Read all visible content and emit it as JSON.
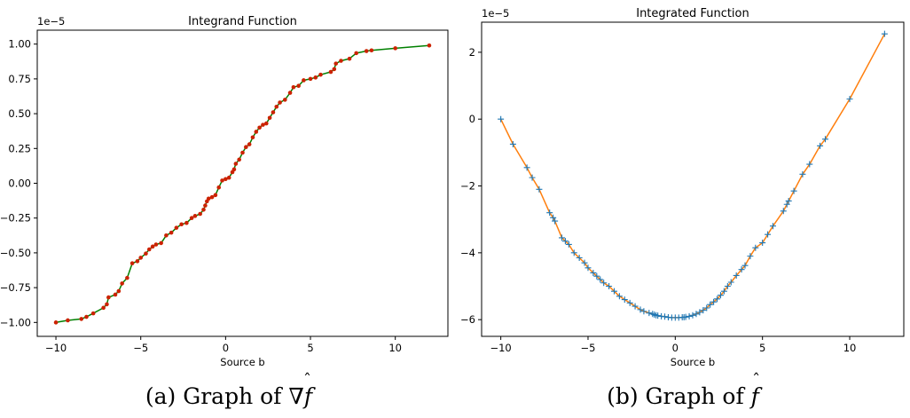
{
  "chart_data": [
    {
      "type": "line",
      "title": "Integrand Function",
      "xlabel": "Source b",
      "ylabel": "",
      "scale_label": "1e−5",
      "xlim": [
        -11.1,
        13.1
      ],
      "ylim": [
        -1.1,
        1.1
      ],
      "xticks": [
        -10,
        -5,
        0,
        5,
        10
      ],
      "xtick_labels": [
        "−10",
        "−5",
        "0",
        "5",
        "10"
      ],
      "yticks": [
        -1.0,
        -0.75,
        -0.5,
        -0.25,
        0.0,
        0.25,
        0.5,
        0.75,
        1.0
      ],
      "ytick_labels": [
        "−1.00",
        "−0.75",
        "−0.50",
        "−0.25",
        "0.00",
        "0.25",
        "0.50",
        "0.75",
        "1.00"
      ],
      "grid": false,
      "series": [
        {
          "name": "integrand",
          "line_color": "#008000",
          "marker": "dot",
          "marker_color": "#cc2200",
          "x": [
            -10,
            -9.3,
            -8.5,
            -8.2,
            -7.8,
            -7.2,
            -7.0,
            -6.9,
            -6.5,
            -6.3,
            -6.1,
            -5.8,
            -5.5,
            -5.2,
            -5.0,
            -4.7,
            -4.5,
            -4.3,
            -4.1,
            -3.8,
            -3.5,
            -3.2,
            -2.9,
            -2.6,
            -2.3,
            -2.0,
            -1.8,
            -1.5,
            -1.3,
            -1.2,
            -1.1,
            -1.0,
            -0.8,
            -0.6,
            -0.4,
            -0.2,
            0.0,
            0.2,
            0.4,
            0.5,
            0.6,
            0.8,
            1.0,
            1.2,
            1.4,
            1.6,
            1.8,
            2.0,
            2.2,
            2.4,
            2.6,
            2.8,
            3.0,
            3.2,
            3.5,
            3.8,
            4.0,
            4.3,
            4.6,
            5.0,
            5.3,
            5.6,
            6.2,
            6.4,
            6.5,
            6.8,
            7.3,
            7.7,
            8.3,
            8.6,
            10.0,
            12.0
          ],
          "y": [
            -1.0,
            -0.985,
            -0.975,
            -0.96,
            -0.935,
            -0.895,
            -0.87,
            -0.82,
            -0.8,
            -0.775,
            -0.72,
            -0.68,
            -0.575,
            -0.56,
            -0.535,
            -0.505,
            -0.475,
            -0.455,
            -0.44,
            -0.43,
            -0.375,
            -0.355,
            -0.32,
            -0.295,
            -0.285,
            -0.25,
            -0.235,
            -0.22,
            -0.19,
            -0.16,
            -0.13,
            -0.11,
            -0.1,
            -0.085,
            -0.03,
            0.02,
            0.03,
            0.04,
            0.08,
            0.1,
            0.14,
            0.17,
            0.22,
            0.26,
            0.28,
            0.33,
            0.37,
            0.4,
            0.42,
            0.43,
            0.47,
            0.51,
            0.55,
            0.58,
            0.6,
            0.65,
            0.69,
            0.7,
            0.74,
            0.75,
            0.76,
            0.78,
            0.8,
            0.82,
            0.86,
            0.88,
            0.895,
            0.935,
            0.95,
            0.955,
            0.97,
            0.99
          ]
        }
      ]
    },
    {
      "type": "line",
      "title": "Integrated Function",
      "xlabel": "Source b",
      "ylabel": "",
      "scale_label": "1e−5",
      "xlim": [
        -11.1,
        13.1
      ],
      "ylim": [
        -6.5,
        2.9
      ],
      "xticks": [
        -10,
        -5,
        0,
        5,
        10
      ],
      "xtick_labels": [
        "−10",
        "−5",
        "0",
        "5",
        "10"
      ],
      "yticks": [
        -6,
        -4,
        -2,
        0,
        2
      ],
      "ytick_labels": [
        "−6",
        "−4",
        "−2",
        "0",
        "2"
      ],
      "grid": false,
      "series": [
        {
          "name": "integrated",
          "line_color": "#ff7f0e",
          "marker": "plus",
          "marker_color": "#1f77b4",
          "x": [
            -10,
            -9.3,
            -8.5,
            -8.2,
            -7.8,
            -7.2,
            -7.0,
            -6.9,
            -6.5,
            -6.3,
            -6.1,
            -5.8,
            -5.5,
            -5.2,
            -5.0,
            -4.7,
            -4.5,
            -4.3,
            -4.1,
            -3.8,
            -3.5,
            -3.2,
            -2.9,
            -2.6,
            -2.3,
            -2.0,
            -1.8,
            -1.5,
            -1.3,
            -1.2,
            -1.1,
            -1.0,
            -0.8,
            -0.6,
            -0.4,
            -0.2,
            0.0,
            0.2,
            0.4,
            0.5,
            0.6,
            0.8,
            1.0,
            1.2,
            1.4,
            1.6,
            1.8,
            2.0,
            2.2,
            2.4,
            2.6,
            2.8,
            3.0,
            3.2,
            3.5,
            3.8,
            4.0,
            4.3,
            4.6,
            5.0,
            5.3,
            5.6,
            6.2,
            6.4,
            6.5,
            6.8,
            7.3,
            7.7,
            8.3,
            8.6,
            10.0,
            12.0
          ],
          "y": [
            0.0,
            -0.75,
            -1.45,
            -1.75,
            -2.1,
            -2.8,
            -2.95,
            -3.05,
            -3.55,
            -3.65,
            -3.75,
            -4.0,
            -4.15,
            -4.3,
            -4.45,
            -4.6,
            -4.7,
            -4.8,
            -4.9,
            -5.0,
            -5.15,
            -5.3,
            -5.4,
            -5.5,
            -5.6,
            -5.7,
            -5.75,
            -5.8,
            -5.83,
            -5.85,
            -5.87,
            -5.88,
            -5.9,
            -5.91,
            -5.93,
            -5.94,
            -5.94,
            -5.94,
            -5.93,
            -5.93,
            -5.92,
            -5.9,
            -5.87,
            -5.83,
            -5.78,
            -5.72,
            -5.65,
            -5.55,
            -5.47,
            -5.38,
            -5.27,
            -5.15,
            -5.0,
            -4.88,
            -4.68,
            -4.5,
            -4.38,
            -4.1,
            -3.85,
            -3.7,
            -3.45,
            -3.2,
            -2.75,
            -2.55,
            -2.45,
            -2.15,
            -1.65,
            -1.35,
            -0.8,
            -0.6,
            0.6,
            2.55
          ]
        }
      ]
    }
  ],
  "captions": [
    {
      "prefix": "(a) Graph of ",
      "math": "∇f",
      "hat": "ˆ"
    },
    {
      "prefix": "(b) Graph of ",
      "math": "f",
      "hat": "ˆ"
    }
  ]
}
